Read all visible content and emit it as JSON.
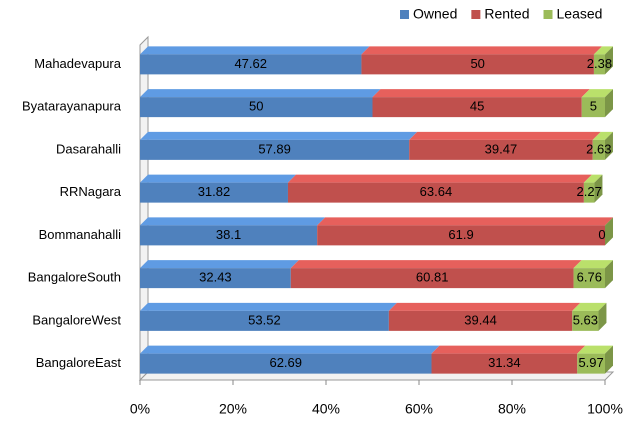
{
  "chart_data": {
    "type": "bar",
    "orientation": "horizontal",
    "stacked": true,
    "categories": [
      "Mahadevapura",
      "Byatarayanapura",
      "Dasarahalli",
      "RRNagara",
      "Bommanahalli",
      "BangaloreSouth",
      "BangaloreWest",
      "BangaloreEast"
    ],
    "series": [
      {
        "name": "Owned",
        "color": "#4f81bd",
        "values": [
          47.62,
          50,
          57.89,
          31.82,
          38.1,
          32.43,
          53.52,
          62.69
        ]
      },
      {
        "name": "Rented",
        "color": "#c0504d",
        "values": [
          50,
          45,
          39.47,
          63.64,
          61.9,
          60.81,
          39.44,
          31.34
        ]
      },
      {
        "name": "Leased",
        "color": "#9bbb59",
        "values": [
          2.38,
          5,
          2.63,
          2.27,
          0,
          6.76,
          5.63,
          5.97
        ]
      }
    ],
    "xlim": [
      0,
      100
    ],
    "xticks": [
      {
        "value": 0,
        "label": "0%"
      },
      {
        "value": 20,
        "label": "20%"
      },
      {
        "value": 40,
        "label": "40%"
      },
      {
        "value": 60,
        "label": "60%"
      },
      {
        "value": 80,
        "label": "80%"
      },
      {
        "value": 100,
        "label": "100%"
      }
    ],
    "grid": false,
    "legend": "top-right"
  }
}
